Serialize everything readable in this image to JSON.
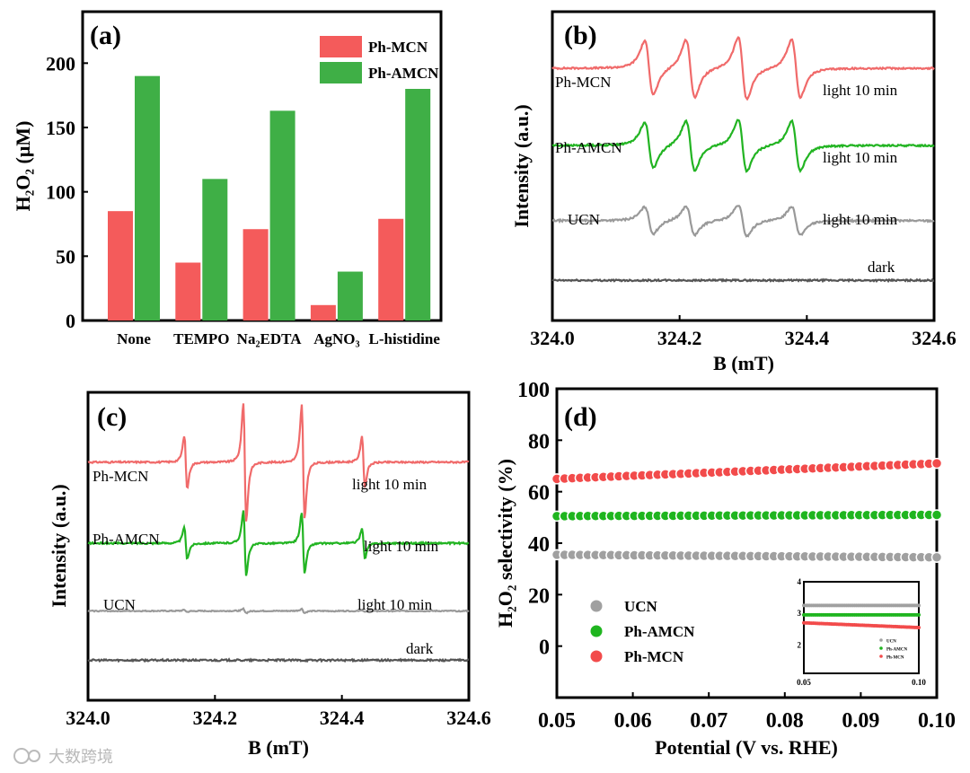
{
  "watermark": "大数跨境",
  "chart_data": [
    {
      "panel": "(a)",
      "type": "bar",
      "title": "",
      "xlabel": "",
      "ylabel": "H₂O₂ (μM)",
      "ylim": [
        0,
        240
      ],
      "yticks": [
        "0",
        "50",
        "100",
        "150",
        "200"
      ],
      "categories": [
        "None",
        "TEMPO",
        "Na₂EDTA",
        "AgNO₃",
        "L-histidine"
      ],
      "series": [
        {
          "name": "Ph-MCN",
          "color": "#f45b5b",
          "values": [
            85,
            45,
            71,
            12,
            79
          ]
        },
        {
          "name": "Ph-AMCN",
          "color": "#3faf46",
          "values": [
            190,
            110,
            163,
            38,
            180
          ]
        }
      ],
      "legend": "top-right"
    },
    {
      "panel": "(b)",
      "type": "line",
      "xlabel": "B (mT)",
      "ylabel": "Intensity (a.u.)",
      "xlim": [
        324.0,
        324.6
      ],
      "xticks": [
        "324.0",
        "324.2",
        "324.4",
        "324.6"
      ],
      "line_centers": [
        324.152,
        324.217,
        324.299,
        324.383
      ],
      "line_width": 0.012,
      "series": [
        {
          "name": "Ph-MCN",
          "condition": "light 10 min",
          "color": "#f06a6a",
          "offset": 245,
          "amplitudes": [
            26,
            28,
            30,
            28
          ],
          "noise": 0.8
        },
        {
          "name": "Ph-AMCN",
          "condition": "light 10 min",
          "color": "#22b422",
          "offset": 170,
          "amplitudes": [
            22,
            24,
            25,
            24
          ],
          "noise": 0.8
        },
        {
          "name": "UCN",
          "condition": "light 10 min",
          "color": "#999999",
          "offset": 97,
          "amplitudes": [
            13,
            14,
            15,
            14
          ],
          "noise": 0.9
        },
        {
          "name": "",
          "condition": "dark",
          "color": "#555555",
          "offset": 39,
          "amplitudes": [
            0,
            0,
            0,
            0
          ],
          "noise": 0.8
        }
      ]
    },
    {
      "panel": "(c)",
      "type": "line",
      "xlabel": "B (mT)",
      "ylabel": "Intensity (a.u.)",
      "xlim": [
        324.0,
        324.6
      ],
      "xticks": [
        "324.0",
        "324.2",
        "324.4",
        "324.6"
      ],
      "line_centers": [
        324.154,
        324.247,
        324.339,
        324.434
      ],
      "line_width": 0.004,
      "series": [
        {
          "name": "Ph-MCN",
          "condition": "light 10 min",
          "color": "#f06a6a",
          "offset": 232,
          "amplitudes": [
            26,
            58,
            56,
            25
          ],
          "noise": 0.8
        },
        {
          "name": "Ph-AMCN",
          "condition": "light 10 min",
          "color": "#22b422",
          "offset": 153,
          "amplitudes": [
            16,
            32,
            30,
            15
          ],
          "noise": 0.8
        },
        {
          "name": "UCN",
          "condition": "light 10 min",
          "color": "#999999",
          "offset": 87,
          "amplitudes": [
            1,
            2,
            2,
            1
          ],
          "noise": 0.5
        },
        {
          "name": "",
          "condition": "dark",
          "color": "#555555",
          "offset": 39,
          "amplitudes": [
            0,
            0,
            0,
            0
          ],
          "noise": 0.9
        }
      ]
    },
    {
      "panel": "(d)",
      "type": "scatter",
      "xlabel": "Potential (V vs. RHE)",
      "ylabel": "H₂O₂ selectivity (%)",
      "xlim": [
        0.05,
        0.1
      ],
      "ylim": [
        -20,
        100
      ],
      "xticks": [
        "0.05",
        "0.06",
        "0.07",
        "0.08",
        "0.09",
        "0.10"
      ],
      "yticks": [
        "0",
        "20",
        "40",
        "60",
        "80",
        "100"
      ],
      "series": [
        {
          "name": "UCN",
          "color": "#a0a0a0",
          "start": 35.5,
          "end": 34.5
        },
        {
          "name": "Ph-AMCN",
          "color": "#1fb51f",
          "start": 50.5,
          "end": 51.0
        },
        {
          "name": "Ph-MCN",
          "color": "#f24b4b",
          "start": 65.0,
          "end": 71.0
        }
      ],
      "legend": "bottom-left",
      "inset": {
        "xlim": [
          0.05,
          0.1
        ],
        "ylim": [
          1.1,
          4
        ],
        "xticks": [
          "0.05",
          "0.10"
        ],
        "yticks": [
          "2",
          "3",
          "4"
        ],
        "series": [
          {
            "name": "UCN",
            "color": "#a0a0a0",
            "start": 3.25,
            "end": 3.25
          },
          {
            "name": "Ph-AMCN",
            "color": "#1fb51f",
            "start": 2.95,
            "end": 2.95
          },
          {
            "name": "Ph-MCN",
            "color": "#f24b4b",
            "start": 2.7,
            "end": 2.55
          }
        ]
      }
    }
  ]
}
